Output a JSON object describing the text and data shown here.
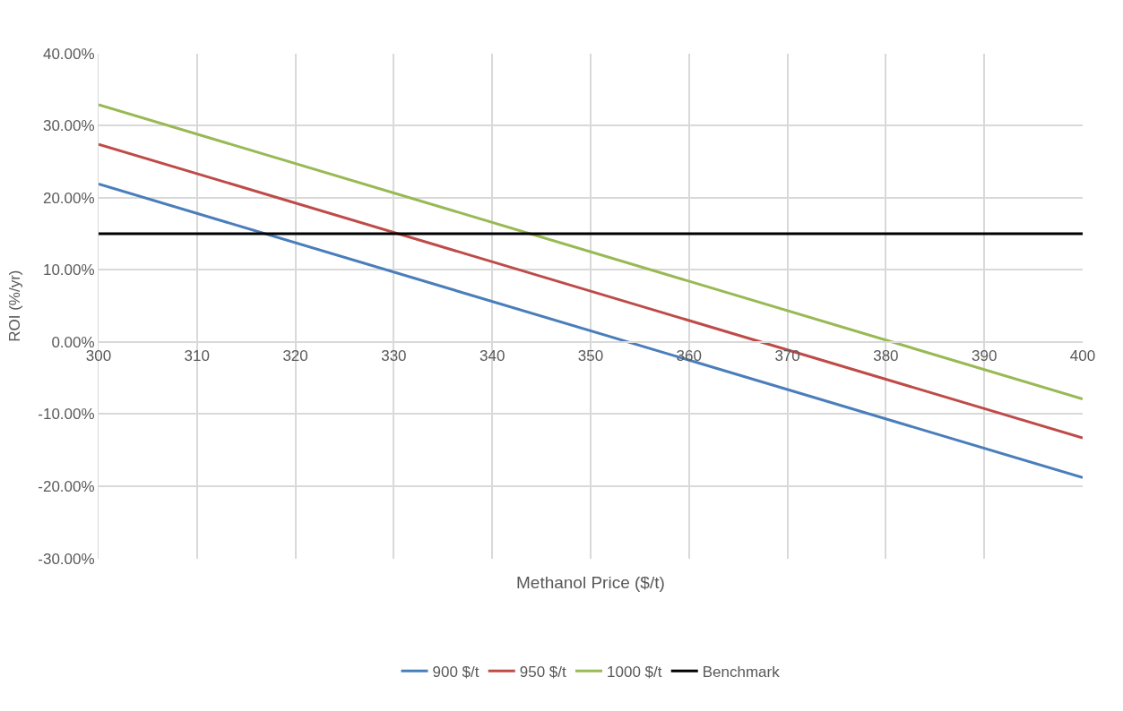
{
  "chart_data": {
    "type": "line",
    "xlabel": "Methanol Price ($/t)",
    "ylabel": "ROI (%/yr)",
    "x": [
      300,
      400
    ],
    "series": [
      {
        "name": "900 $/t",
        "color": "#4a7ebb",
        "values": [
          21.9,
          -18.8
        ]
      },
      {
        "name": "950 $/t",
        "color": "#be4b48",
        "values": [
          27.4,
          -13.3
        ]
      },
      {
        "name": "1000 $/t",
        "color": "#98b954",
        "values": [
          32.9,
          -7.9
        ]
      },
      {
        "name": "Benchmark",
        "color": "#000000",
        "values": [
          15,
          15
        ]
      }
    ],
    "xlim": [
      300,
      400
    ],
    "xticks": [
      300,
      310,
      320,
      330,
      340,
      350,
      360,
      370,
      380,
      390,
      400
    ],
    "ylim": [
      -30,
      40
    ],
    "yticks": [
      {
        "value": -30,
        "label": "-30.00%"
      },
      {
        "value": -20,
        "label": "-20.00%"
      },
      {
        "value": -10,
        "label": "-10.00%"
      },
      {
        "value": 0,
        "label": "0.00%"
      },
      {
        "value": 10,
        "label": "10.00%"
      },
      {
        "value": 20,
        "label": "20.00%"
      },
      {
        "value": 30,
        "label": "30.00%"
      },
      {
        "value": 40,
        "label": "40.00%"
      }
    ],
    "grid": true,
    "legend": "bottom",
    "marker": "none",
    "line_style": "solid"
  }
}
